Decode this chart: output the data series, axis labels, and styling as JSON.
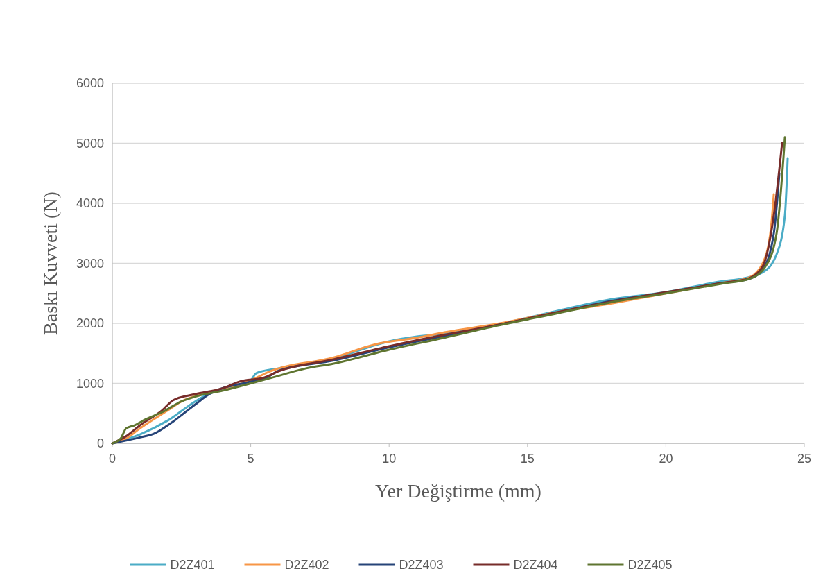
{
  "chart_data": {
    "type": "line",
    "xlabel": "Yer Değiştirme (mm)",
    "ylabel": "Baskı Kuvveti (N)",
    "xlim": [
      0,
      25
    ],
    "xticks": [
      0,
      5,
      10,
      15,
      20,
      25
    ],
    "ylim": [
      0,
      6000
    ],
    "yticks": [
      0,
      1000,
      2000,
      3000,
      4000,
      5000,
      6000
    ],
    "grid": "y",
    "legend": "bottom",
    "marker": "none",
    "line_style": "solid",
    "series": [
      {
        "name": "D2Z401",
        "color": "#4bacc6",
        "x": [
          0,
          1,
          2,
          3,
          3.5,
          5,
          5.2,
          6,
          8,
          10,
          11,
          12,
          14,
          16,
          18,
          20,
          22,
          22.8,
          23.5,
          24,
          24.3,
          24.4
        ],
        "values": [
          0,
          150,
          380,
          700,
          830,
          1050,
          1170,
          1250,
          1420,
          1700,
          1780,
          1830,
          1990,
          2200,
          2400,
          2520,
          2700,
          2750,
          2850,
          3150,
          3800,
          4750
        ]
      },
      {
        "name": "D2Z402",
        "color": "#f79646",
        "x": [
          0,
          0.5,
          1,
          2,
          2.5,
          3.5,
          5,
          5.7,
          8,
          9.5,
          11,
          12,
          14,
          16,
          18,
          20,
          22,
          23,
          23.5,
          23.8,
          23.9
        ],
        "values": [
          0,
          80,
          250,
          550,
          700,
          850,
          1050,
          1200,
          1430,
          1650,
          1760,
          1850,
          2000,
          2180,
          2330,
          2500,
          2670,
          2760,
          3000,
          3600,
          4150
        ]
      },
      {
        "name": "D2Z403",
        "color": "#264478",
        "x": [
          0,
          1,
          1.5,
          2,
          3,
          3.5,
          5,
          5.6,
          6,
          8,
          10,
          12,
          14,
          16,
          18,
          20,
          22,
          23,
          23.5,
          23.9,
          24.1
        ],
        "values": [
          0,
          100,
          160,
          300,
          650,
          820,
          1030,
          1100,
          1210,
          1380,
          1600,
          1790,
          1980,
          2170,
          2370,
          2510,
          2670,
          2740,
          2900,
          3500,
          4500
        ]
      },
      {
        "name": "D2Z404",
        "color": "#772c2a",
        "x": [
          0,
          0.5,
          1,
          1.8,
          2.2,
          3,
          4,
          4.6,
          5.5,
          6,
          8,
          10,
          12,
          14,
          16,
          18,
          20,
          22,
          23,
          23.5,
          23.9,
          24.2
        ],
        "values": [
          0,
          120,
          300,
          550,
          720,
          820,
          920,
          1030,
          1100,
          1200,
          1400,
          1620,
          1810,
          1980,
          2180,
          2360,
          2520,
          2670,
          2750,
          2950,
          3800,
          5010
        ]
      },
      {
        "name": "D2Z405",
        "color": "#5f7530",
        "x": [
          0,
          0.3,
          0.5,
          0.8,
          1.2,
          1.8,
          2.5,
          3,
          4,
          5,
          5.8,
          7,
          8,
          10,
          12,
          14,
          16,
          18,
          20,
          22,
          23,
          23.6,
          24,
          24.3
        ],
        "values": [
          0,
          80,
          250,
          300,
          400,
          520,
          700,
          780,
          880,
          1000,
          1100,
          1250,
          1330,
          1560,
          1760,
          1970,
          2160,
          2350,
          2500,
          2660,
          2740,
          2950,
          3500,
          5100
        ]
      }
    ]
  }
}
